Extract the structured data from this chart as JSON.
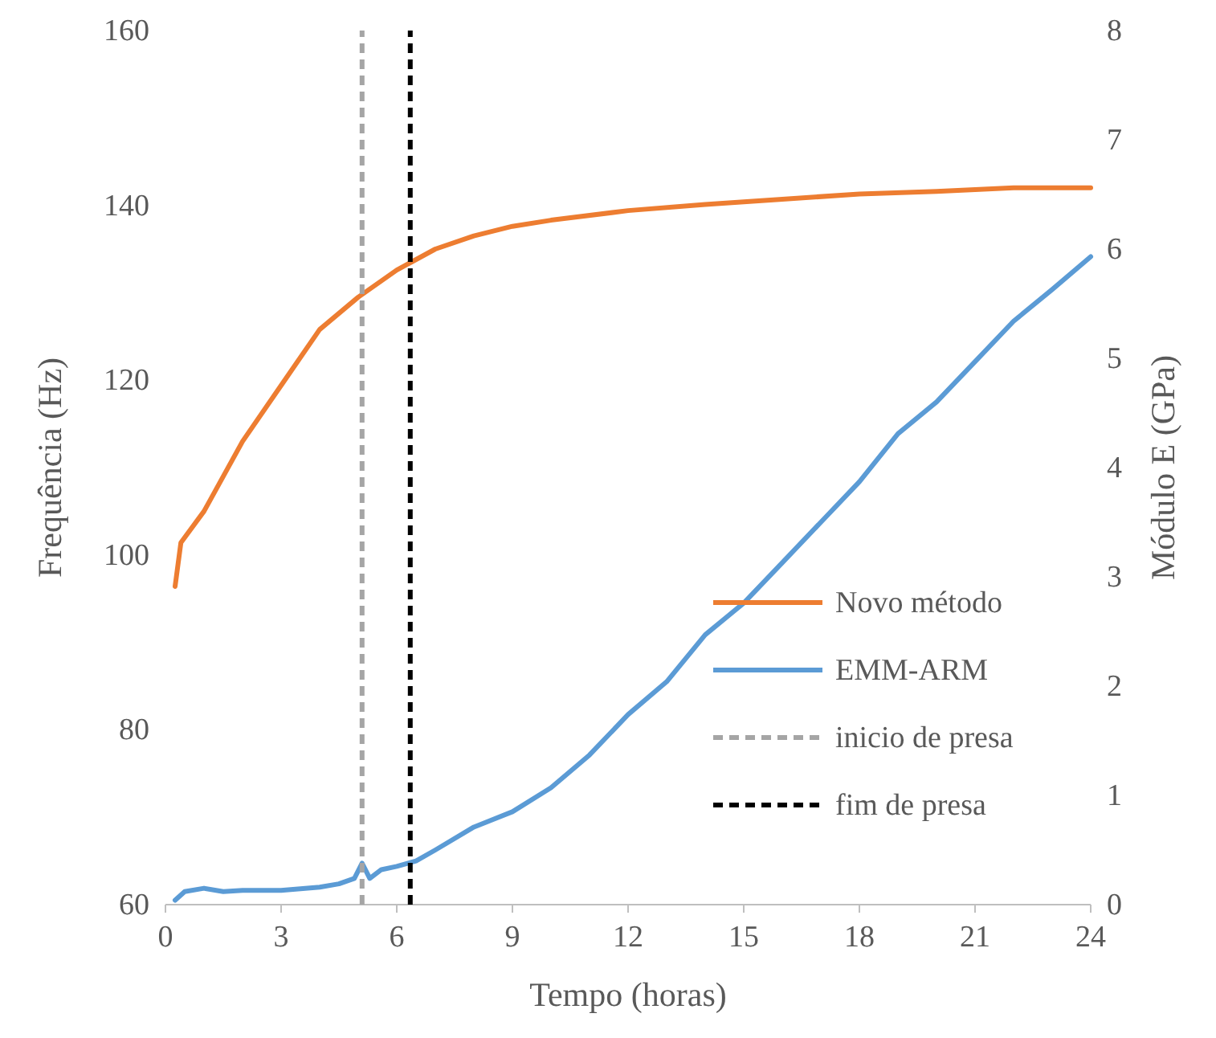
{
  "chart_data": {
    "type": "line",
    "xlabel": "Tempo (horas)",
    "ylabel": "Frequência (Hz)",
    "y2label": "Módulo E (GPa)",
    "xlim": [
      0,
      24
    ],
    "xticks": [
      0,
      3,
      6,
      9,
      12,
      15,
      18,
      21,
      24
    ],
    "ylim": [
      60,
      160
    ],
    "yticks": [
      60,
      80,
      100,
      120,
      140,
      160
    ],
    "y2lim": [
      0,
      8
    ],
    "y2ticks": [
      0,
      1,
      2,
      3,
      4,
      5,
      6,
      7,
      8
    ],
    "grid": false,
    "legend": "bottom right",
    "marker": "none",
    "line_style": "solid",
    "series": [
      {
        "name": "Novo método",
        "color": "#ed7d31",
        "x": [
          0.25,
          0.4,
          1,
          2,
          3,
          4,
          5,
          6,
          7,
          8,
          9,
          10,
          12,
          14,
          16,
          18,
          20,
          22,
          24
        ],
        "values": [
          96.4,
          101.4,
          105,
          113,
          119.4,
          125.8,
          129.5,
          132.6,
          135,
          136.5,
          137.6,
          138.3,
          139.4,
          140.1,
          140.7,
          141.3,
          141.6,
          142,
          142
        ]
      },
      {
        "name": "EMM-ARM",
        "color": "#5b9bd5",
        "axis": "y2",
        "x": [
          0.25,
          0.5,
          1,
          1.5,
          2,
          3,
          4,
          4.5,
          4.9,
          5.1,
          5.3,
          5.6,
          6,
          6.5,
          7,
          8,
          9,
          10,
          11,
          12,
          13,
          14,
          15,
          16,
          17,
          18,
          19,
          20,
          21,
          22,
          23,
          24
        ],
        "values": [
          0.04,
          0.12,
          0.15,
          0.12,
          0.13,
          0.13,
          0.16,
          0.19,
          0.24,
          0.38,
          0.24,
          0.32,
          0.35,
          0.4,
          0.5,
          0.71,
          0.85,
          1.07,
          1.37,
          1.74,
          2.04,
          2.47,
          2.76,
          3.13,
          3.5,
          3.87,
          4.31,
          4.6,
          4.97,
          5.34,
          5.63,
          5.93
        ]
      },
      {
        "name": "inicio de presa",
        "color": "#a5a5a5",
        "line_style": "dashed",
        "x": [
          5.1,
          5.1
        ],
        "values": [
          60,
          160
        ]
      },
      {
        "name": "fim de presa",
        "color": "#000000",
        "line_style": "dashed",
        "x": [
          6.35,
          6.35
        ],
        "values": [
          60,
          160
        ]
      }
    ]
  }
}
